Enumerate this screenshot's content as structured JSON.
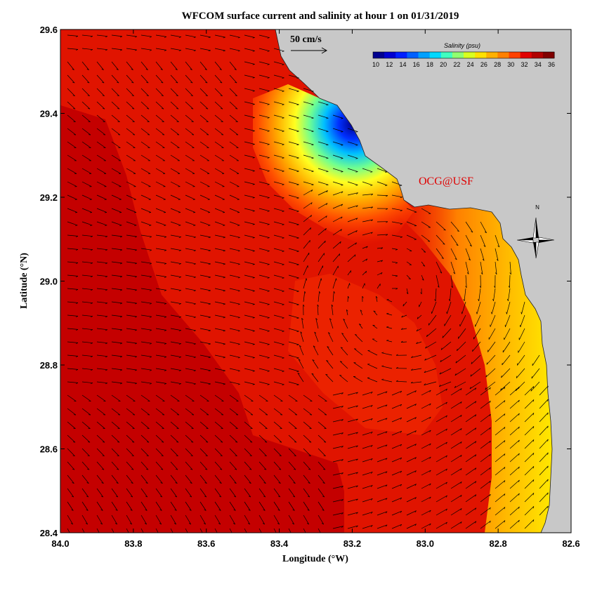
{
  "title": "WFCOM surface current and salinity at hour 1 on 01/31/2019",
  "credit": {
    "text": "OCG@USF",
    "color": "#e00000"
  },
  "axes": {
    "xlabel": "Longitude (°W)",
    "ylabel": "Latitude (°N)",
    "xticks": [
      "84.0",
      "83.8",
      "83.6",
      "83.4",
      "83.2",
      "83.0",
      "82.8",
      "82.6"
    ],
    "yticks": [
      "29.6",
      "29.4",
      "29.2",
      "29.0",
      "28.8",
      "28.6",
      "28.4"
    ]
  },
  "reference_vector": {
    "label": "50 cm/s"
  },
  "colorbar": {
    "title": "Salinity (psu)",
    "ticks": [
      "10",
      "12",
      "14",
      "16",
      "18",
      "20",
      "22",
      "24",
      "26",
      "28",
      "30",
      "32",
      "34",
      "36"
    ],
    "colors": [
      "#00008f",
      "#0000d0",
      "#0020ff",
      "#0060ff",
      "#00a0ff",
      "#00d8ff",
      "#40ffc0",
      "#90ff70",
      "#d8ff20",
      "#ffe000",
      "#ffb000",
      "#ff8000",
      "#ff4000",
      "#e00000",
      "#b00000",
      "#800000"
    ]
  },
  "compass": {
    "north_label": "N"
  },
  "chart_data": {
    "type": "heatmap",
    "title": "WFCOM surface current and salinity at hour 1 on 01/31/2019",
    "xlabel": "Longitude (°W)",
    "ylabel": "Latitude (°N)",
    "xlim": [
      84.0,
      82.6
    ],
    "ylim": [
      28.4,
      29.6
    ],
    "variable": "Salinity (psu)",
    "color_range": [
      10,
      36
    ],
    "land_color": "#c8c8c8",
    "ocean_overlay": "surface current vectors",
    "features": [
      {
        "name": "low-salinity plume",
        "lon": 83.15,
        "lat": 29.28,
        "salinity_min": 10
      },
      {
        "name": "offshore saline water",
        "lon": 83.9,
        "lat": 28.5,
        "salinity_max": 36
      },
      {
        "name": "nearshore band",
        "lon": 82.75,
        "lat": 28.8,
        "salinity": 28
      }
    ]
  }
}
